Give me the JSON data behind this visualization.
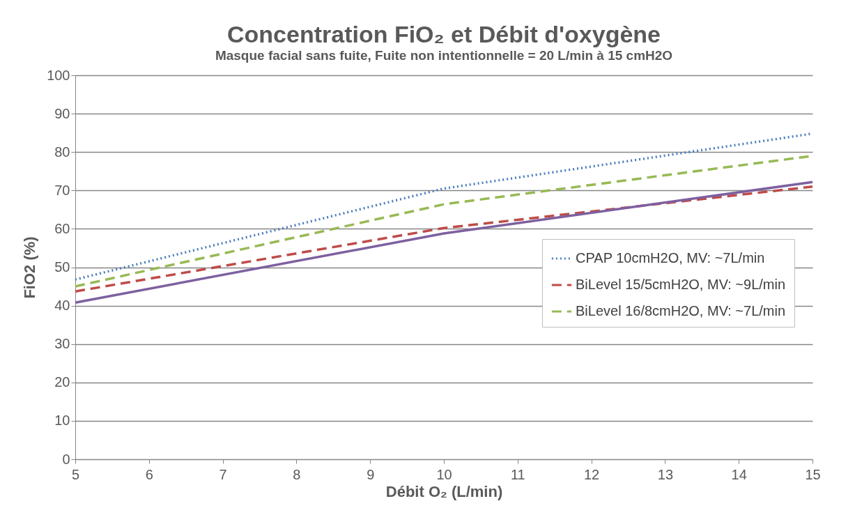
{
  "chart_data": {
    "type": "line",
    "title": "Concentration FiO₂ et Débit d'oxygène",
    "subtitle": "Masque facial sans fuite, Fuite non intentionnelle = 20 L/min à 15 cmH2O",
    "xlabel": "Débit O₂ (L/min)",
    "ylabel": "FiO2 (%)",
    "x": [
      5,
      10,
      15
    ],
    "series": [
      {
        "name": "CPAP 10cmH2O, MV: ~7L/min",
        "color": "#4a7ebb",
        "line_style": "dotted",
        "values": [
          46.8,
          70.5,
          84.8
        ]
      },
      {
        "name": "BiLevel 15/5cmH2O, MV: ~9L/min",
        "color": "#be4b48",
        "line_style": "dashed",
        "values": [
          43.7,
          60.2,
          71
        ]
      },
      {
        "name": "BiLevel 16/8cmH2O, MV: ~7L/min",
        "color": "#98b954",
        "line_style": "dashed",
        "values": [
          45,
          66.4,
          79
        ]
      },
      {
        "color": "#7d60a0",
        "line_style": "solid",
        "values": [
          40.8,
          58.8,
          72.2
        ]
      }
    ],
    "xlim": [
      5,
      15
    ],
    "xticks": [
      5,
      6,
      7,
      8,
      9,
      10,
      11,
      12,
      13,
      14,
      15
    ],
    "ylim": [
      0,
      100
    ],
    "yticks": [
      0,
      10,
      20,
      30,
      40,
      50,
      60,
      70,
      80,
      90,
      100
    ],
    "grid": "y",
    "legend": "right",
    "marker": "none"
  }
}
